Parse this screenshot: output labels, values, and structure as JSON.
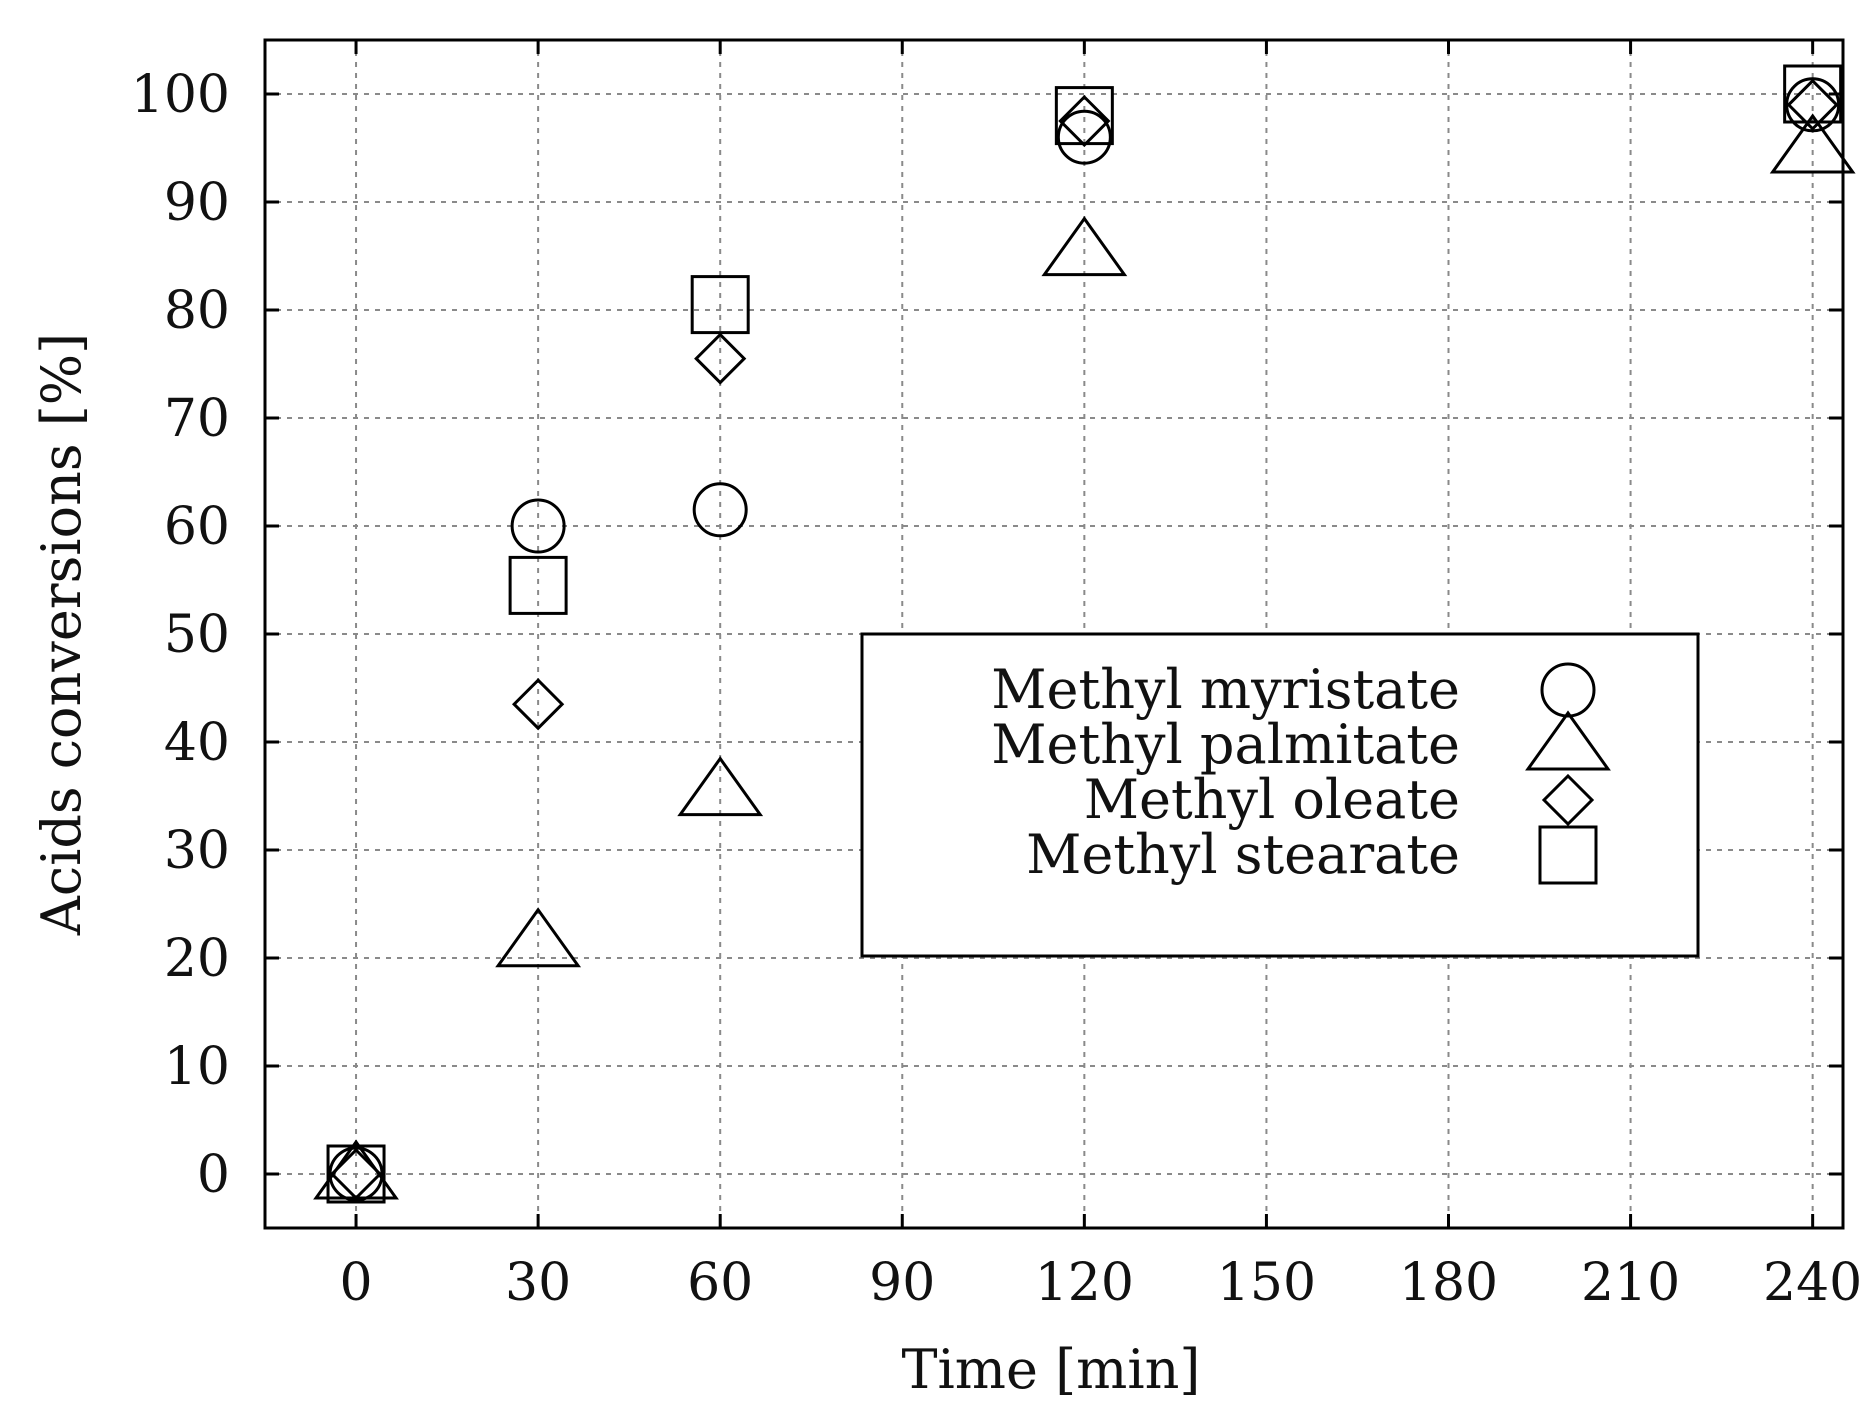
{
  "chart_data": {
    "type": "scatter",
    "xlabel": "Time [min]",
    "ylabel": "Acids conversions [%]",
    "xlim": [
      -15,
      245
    ],
    "ylim": [
      -5,
      105
    ],
    "xticks": [
      0,
      30,
      60,
      90,
      120,
      150,
      180,
      210,
      240
    ],
    "yticks": [
      0,
      10,
      20,
      30,
      40,
      50,
      60,
      70,
      80,
      90,
      100
    ],
    "grid": true,
    "legend_position": "center-right",
    "series": [
      {
        "name": "Methyl myristate",
        "marker": "circle",
        "x": [
          0,
          30,
          60,
          120,
          240
        ],
        "y": [
          0,
          60,
          61.5,
          96,
          99
        ]
      },
      {
        "name": "Methyl palmitate",
        "marker": "triangle",
        "x": [
          0,
          30,
          60,
          120,
          240
        ],
        "y": [
          0,
          21.5,
          35.5,
          85.5,
          95
        ]
      },
      {
        "name": "Methyl oleate",
        "marker": "diamond",
        "x": [
          0,
          30,
          60,
          120,
          240
        ],
        "y": [
          0,
          43.5,
          75.5,
          97.5,
          99
        ]
      },
      {
        "name": "Methyl stearate",
        "marker": "square",
        "x": [
          0,
          30,
          60,
          120,
          240
        ],
        "y": [
          0,
          54.5,
          80.5,
          98,
          100
        ]
      }
    ]
  }
}
